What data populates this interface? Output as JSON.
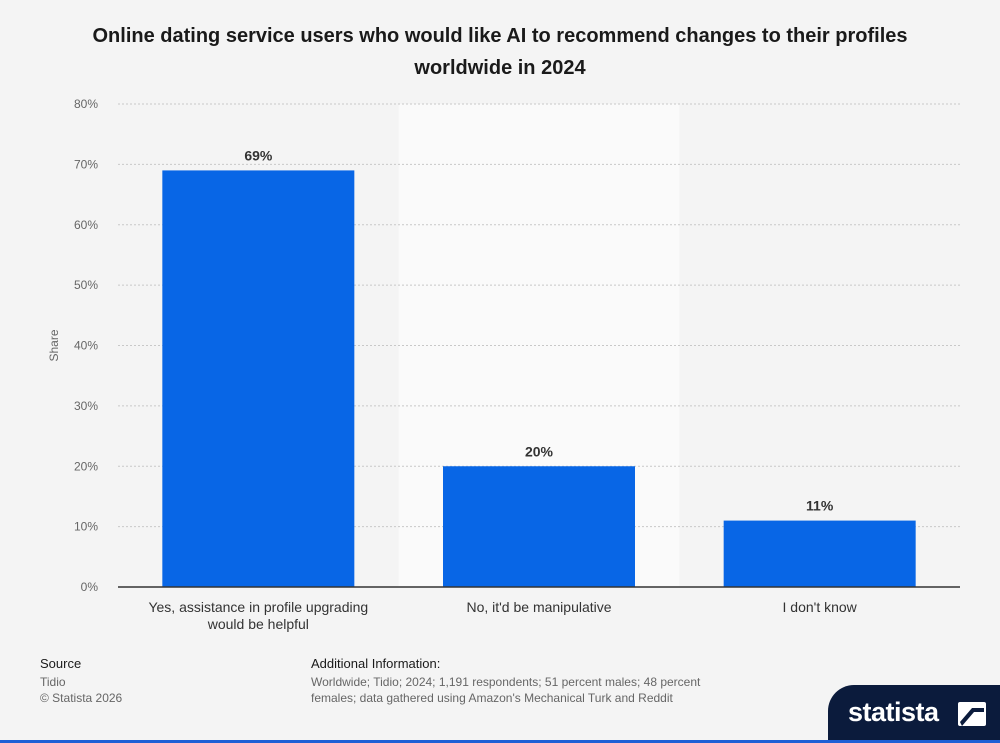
{
  "chart_data": {
    "type": "bar",
    "title": "Online dating service users who would like AI to recommend changes to their profiles worldwide in 2024",
    "ylabel": "Share",
    "xlabel": "",
    "ylim": [
      0,
      80
    ],
    "yticks": [
      0,
      10,
      20,
      30,
      40,
      50,
      60,
      70,
      80
    ],
    "ytick_suffix": "%",
    "grid": true,
    "categories": [
      [
        "Yes, assistance in profile upgrading",
        "would be helpful"
      ],
      [
        "No, it'd be manipulative"
      ],
      [
        "I don't know"
      ]
    ],
    "values": [
      69,
      20,
      11
    ],
    "data_labels": [
      "69%",
      "20%",
      "11%"
    ],
    "bar_color": "#0866e6"
  },
  "footer": {
    "source_label": "Source",
    "source_value": "Tidio",
    "copyright": "© Statista 2026",
    "additional_label": "Additional Information:",
    "additional_lines": [
      "Worldwide; Tidio; 2024; 1,191 respondents; 51 percent males; 48 percent",
      "females; data gathered using Amazon's Mechanical Turk and Reddit"
    ]
  },
  "logo": {
    "name": "statista",
    "icon": "statista-logo-icon"
  }
}
